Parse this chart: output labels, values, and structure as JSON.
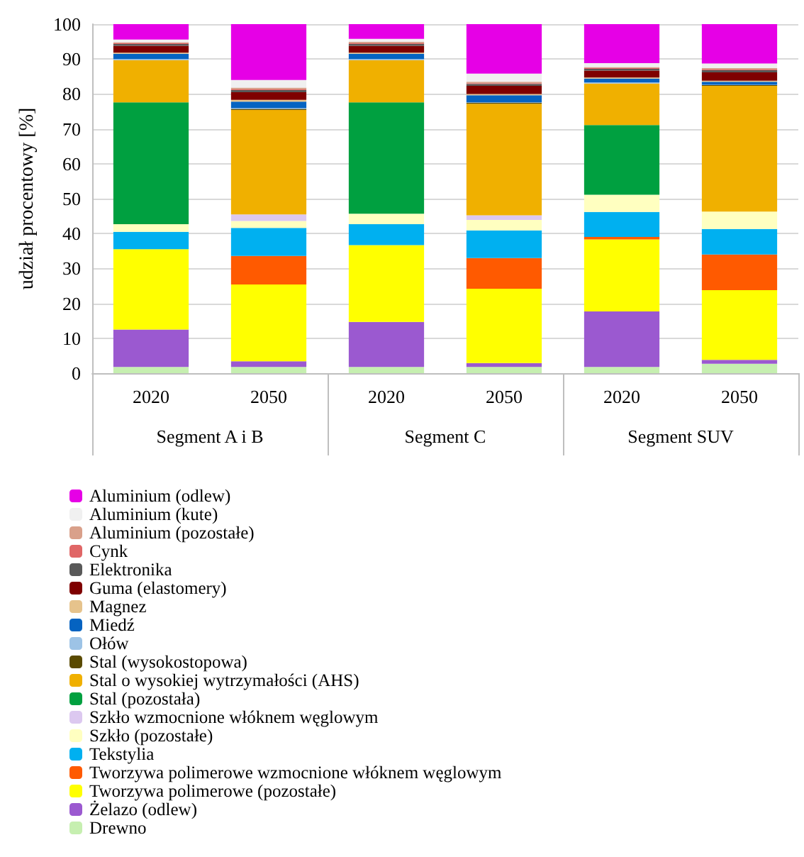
{
  "chart_data": {
    "type": "bar",
    "stacked": true,
    "ylabel": "udział procentowy [%]",
    "categories": [
      "2020",
      "2050",
      "2020",
      "2050",
      "2020",
      "2050"
    ],
    "annotations": [
      "Segment A i B",
      "Segment C",
      "Segment SUV"
    ],
    "ylim": [
      0,
      100
    ],
    "yticks": [
      0,
      10,
      20,
      30,
      40,
      50,
      60,
      70,
      80,
      90,
      100
    ],
    "grid": "y",
    "legend": "bottom",
    "series": [
      {
        "name": "Drewno",
        "color": "#c6efb0",
        "values": [
          1.8,
          1.8,
          1.8,
          1.8,
          1.8,
          2.7
        ]
      },
      {
        "name": "Żelazo (odlew)",
        "color": "#9b59d0",
        "values": [
          10.7,
          1.6,
          12.9,
          1.1,
          15.9,
          1.1
        ]
      },
      {
        "name": "Tworzywa polimerowe (pozostałe)",
        "color": "#ffff00",
        "values": [
          23,
          22,
          22,
          21.3,
          20.6,
          20
        ]
      },
      {
        "name": "Tworzywa polimerowe wzmocnione włóknem węglowym",
        "color": "#ff5a00",
        "values": [
          null,
          8.2,
          null,
          8.8,
          0.7,
          10.2
        ]
      },
      {
        "name": "Tekstylia",
        "color": "#00b0f0",
        "values": [
          5,
          8,
          6,
          7.9,
          7.2,
          7.3
        ]
      },
      {
        "name": "Szkło (pozostałe)",
        "color": "#ffffc0",
        "values": [
          2.2,
          2,
          3,
          3,
          4.9,
          5
        ]
      },
      {
        "name": "Szkło wzmocnione włóknem węglowym",
        "color": "#dcc8f0",
        "values": [
          null,
          1.9,
          null,
          1.3,
          null,
          null
        ]
      },
      {
        "name": "Stal (pozostała)",
        "color": "#00a040",
        "values": [
          34.9,
          null,
          31.9,
          null,
          20,
          null
        ]
      },
      {
        "name": "Stal o wysokiej wytrzymałości (AHS)",
        "color": "#f0b000",
        "values": [
          12.1,
          29.9,
          12.1,
          32,
          11.9,
          36
        ]
      },
      {
        "name": "Stal (wysokostopowa)",
        "color": "#5a4a00",
        "values": [
          null,
          0.3,
          null,
          0.3,
          null,
          0.2
        ]
      },
      {
        "name": "Ołów",
        "color": "#9dc3e6",
        "values": [
          0.3,
          0.2,
          0.3,
          0.1,
          0.3,
          0.1
        ]
      },
      {
        "name": "Miedź",
        "color": "#0563c1",
        "values": [
          1.5,
          1.9,
          1.5,
          2,
          1.1,
          0.9
        ]
      },
      {
        "name": "Magnez",
        "color": "#e6c38c",
        "values": [
          0.3,
          0.5,
          0.3,
          0.4,
          0.3,
          0.3
        ]
      },
      {
        "name": "Guma (elastomery)",
        "color": "#7f0000",
        "values": [
          2,
          2.2,
          2,
          2.3,
          2,
          2.4
        ]
      },
      {
        "name": "Elektronika",
        "color": "#595959",
        "values": [
          0.5,
          0.6,
          0.5,
          0.6,
          0.5,
          0.6
        ]
      },
      {
        "name": "Cynk",
        "color": "#e06666",
        "values": [
          0.2,
          0.2,
          0.2,
          0.2,
          0.2,
          0.2
        ]
      },
      {
        "name": "Aluminium (pozostałe)",
        "color": "#d9a08a",
        "values": [
          0.3,
          0.5,
          0.4,
          0.4,
          0.3,
          0.4
        ]
      },
      {
        "name": "Aluminium (kute)",
        "color": "#f0f0f0",
        "values": [
          0.8,
          2.2,
          0.9,
          2.3,
          1.1,
          1.3
        ]
      },
      {
        "name": "Aluminium (odlew)",
        "color": "#e600e6",
        "values": [
          4.4,
          16,
          4.2,
          14.2,
          11.2,
          11.3
        ]
      }
    ]
  }
}
